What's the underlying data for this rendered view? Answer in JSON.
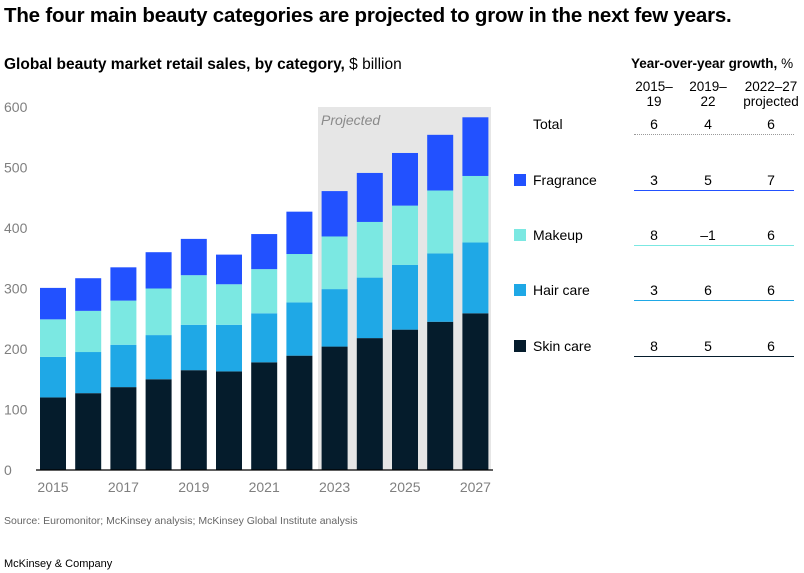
{
  "headline": "The four main beauty categories are projected to grow in the next few years.",
  "colors": {
    "skin_care": "#051C2C",
    "hair_care": "#1FA8E6",
    "makeup": "#7BE8E2",
    "fragrance": "#2251FF",
    "projected_shade": "#E6E6E6",
    "axis_text": "#7F7F7F"
  },
  "chart_data": {
    "type": "bar",
    "stacked": true,
    "title": "Global beauty market retail sales, by category,",
    "unit": "$ billion",
    "projected_label": "Projected",
    "projected_from": 2023,
    "x": [
      2015,
      2016,
      2017,
      2018,
      2019,
      2020,
      2021,
      2022,
      2023,
      2024,
      2025,
      2026,
      2027
    ],
    "x_tick_labels": [
      "2015",
      "2017",
      "2019",
      "2021",
      "2023",
      "2025",
      "2027"
    ],
    "ylim": [
      0,
      600
    ],
    "y_ticks": [
      0,
      100,
      200,
      300,
      400,
      500,
      600
    ],
    "grid": false,
    "series": [
      {
        "name": "Skin care",
        "color": "#051C2C",
        "values": [
          120,
          127,
          137,
          150,
          165,
          163,
          178,
          189,
          204,
          218,
          232,
          245,
          259
        ]
      },
      {
        "name": "Hair care",
        "color": "#1FA8E6",
        "values": [
          67,
          68,
          70,
          73,
          75,
          77,
          81,
          88,
          95,
          100,
          107,
          113,
          117
        ]
      },
      {
        "name": "Makeup",
        "color": "#7BE8E2",
        "values": [
          62,
          68,
          73,
          77,
          82,
          67,
          73,
          80,
          87,
          92,
          98,
          104,
          110
        ]
      },
      {
        "name": "Fragrance",
        "color": "#2251FF",
        "values": [
          52,
          54,
          55,
          60,
          60,
          49,
          58,
          70,
          75,
          81,
          87,
          92,
          97
        ]
      }
    ]
  },
  "growth_table": {
    "title_bold": "Year-over-year growth,",
    "title_unit": "%",
    "columns": [
      "2015–\n19",
      "2019–\n22",
      "2022–27\nprojected"
    ],
    "rows": [
      {
        "label": "Total",
        "values": [
          "6",
          "4",
          "6"
        ],
        "color": null,
        "line": "dotted"
      },
      {
        "label": "Fragrance",
        "values": [
          "3",
          "5",
          "7"
        ],
        "color": "#2251FF",
        "line": "solid"
      },
      {
        "label": "Makeup",
        "values": [
          "8",
          "–1",
          "6"
        ],
        "color": "#7BE8E2",
        "line": "solid"
      },
      {
        "label": "Hair care",
        "values": [
          "3",
          "6",
          "6"
        ],
        "color": "#1FA8E6",
        "line": "solid"
      },
      {
        "label": "Skin care",
        "values": [
          "8",
          "5",
          "6"
        ],
        "color": "#051C2C",
        "line": "solid"
      }
    ]
  },
  "source": "Source: Euromonitor; McKinsey analysis; McKinsey Global Institute analysis",
  "brand": "McKinsey & Company"
}
